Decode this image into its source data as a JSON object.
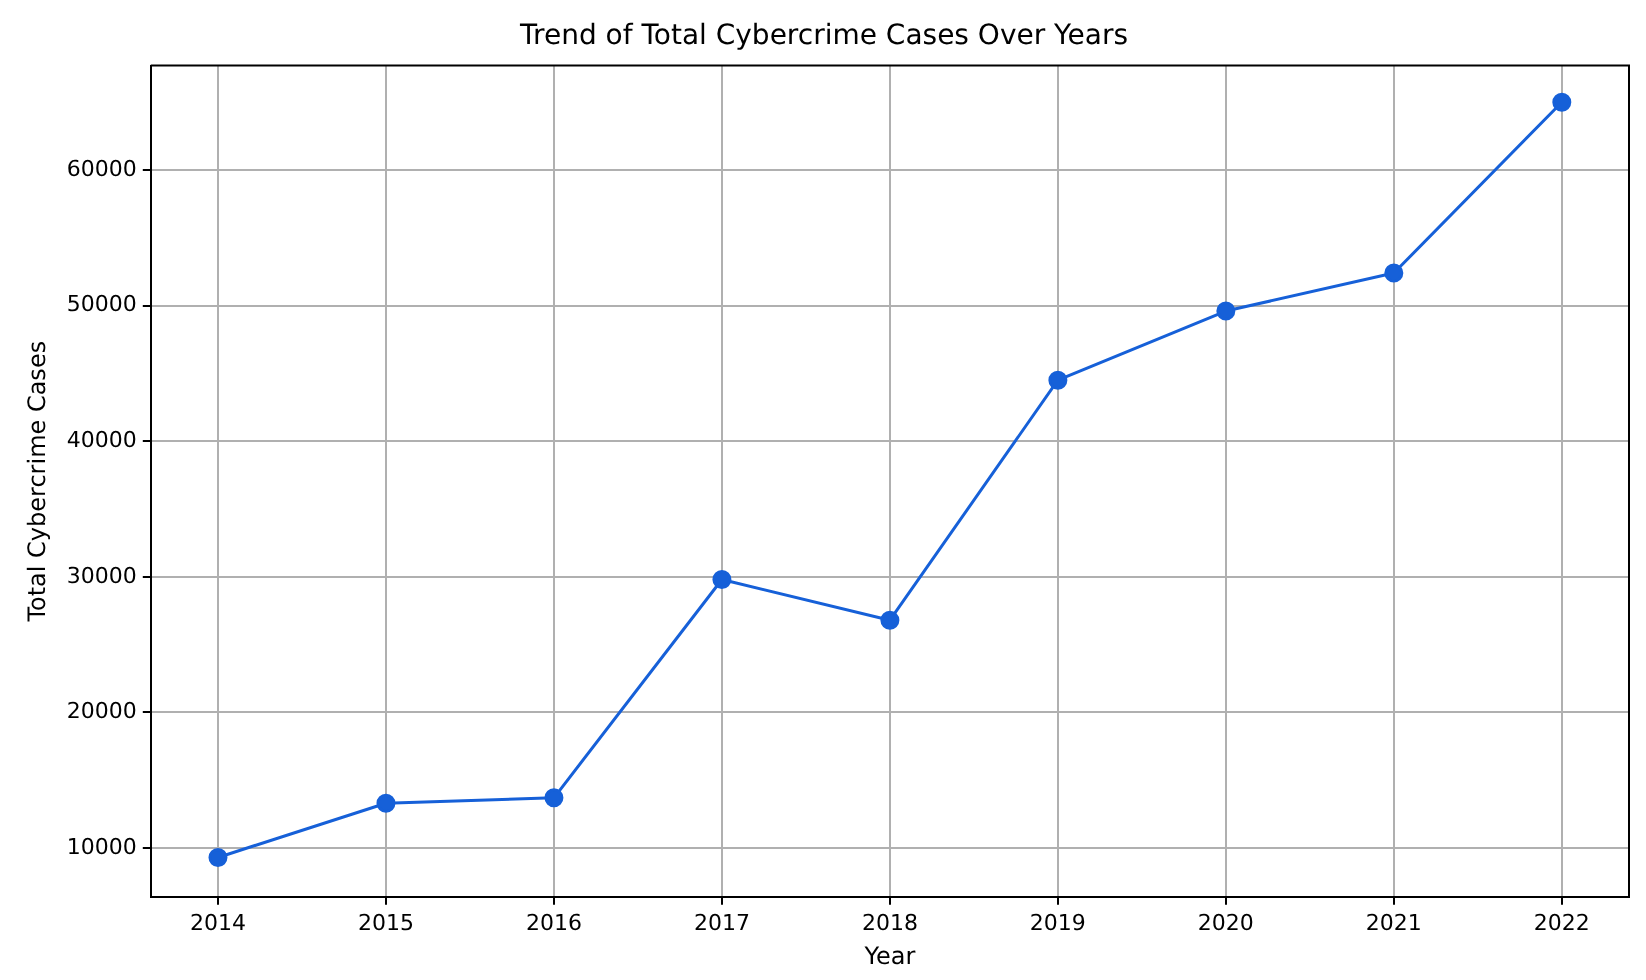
{
  "chart_data": {
    "type": "line",
    "title": "Trend of Total Cybercrime Cases Over Years",
    "xlabel": "Year",
    "ylabel": "Total Cybercrime Cases",
    "x": [
      2014,
      2015,
      2016,
      2017,
      2018,
      2019,
      2020,
      2021,
      2022
    ],
    "series": [
      {
        "color": "#1660d8",
        "values": [
          9300,
          13300,
          13700,
          29800,
          26800,
          44500,
          49600,
          52400,
          65000
        ]
      }
    ],
    "xlim": [
      2013.6,
      2022.4
    ],
    "xticks": [
      2014,
      2015,
      2016,
      2017,
      2018,
      2019,
      2020,
      2021,
      2022
    ],
    "ylim": [
      6400,
      67700
    ],
    "yticks": [
      10000,
      20000,
      30000,
      40000,
      50000,
      60000
    ],
    "grid": true,
    "marker": "circle",
    "line_style": "solid"
  }
}
